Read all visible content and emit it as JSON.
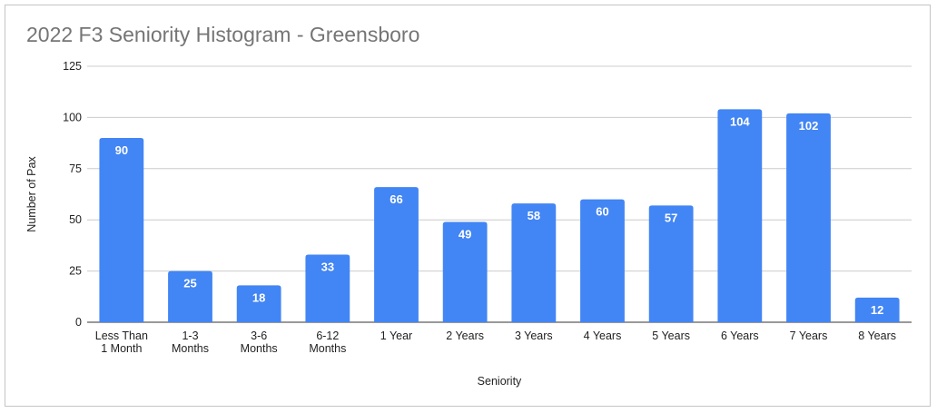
{
  "chart_data": {
    "type": "bar",
    "title": "2022 F3 Seniority Histogram - Greensboro",
    "xlabel": "Seniority",
    "ylabel": "Number of Pax",
    "ylim": [
      0,
      125
    ],
    "yticks": [
      0,
      25,
      50,
      75,
      100,
      125
    ],
    "categories": [
      [
        "Less Than",
        "1 Month"
      ],
      [
        "1-3",
        "Months"
      ],
      [
        "3-6",
        "Months"
      ],
      [
        "6-12",
        "Months"
      ],
      [
        "1 Year"
      ],
      [
        "2 Years"
      ],
      [
        "3 Years"
      ],
      [
        "4 Years"
      ],
      [
        "5 Years"
      ],
      [
        "6 Years"
      ],
      [
        "7 Years"
      ],
      [
        "8 Years"
      ]
    ],
    "values": [
      90,
      25,
      18,
      33,
      66,
      49,
      58,
      60,
      57,
      104,
      102,
      12
    ],
    "grid": true,
    "legend": "none",
    "colors": {
      "bar": "#4285f4",
      "grid": "#cccccc",
      "axis": "#333333",
      "title": "#757575"
    }
  }
}
